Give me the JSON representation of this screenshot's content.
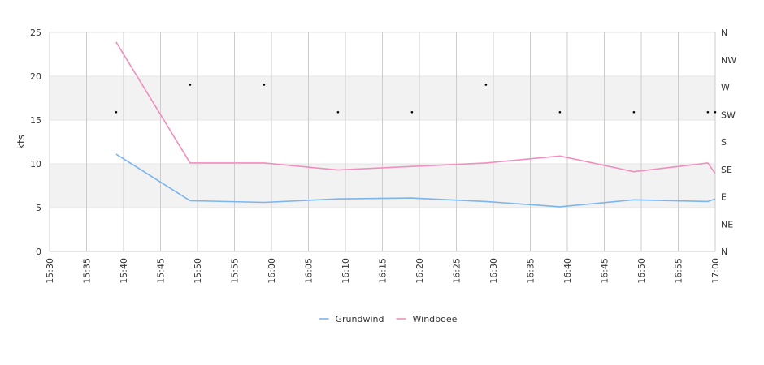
{
  "chart_data": {
    "type": "line",
    "ylabel": "kts",
    "xlim": [
      "15:30",
      "17:00"
    ],
    "x_ticks": [
      "15:30",
      "15:35",
      "15:40",
      "15:45",
      "15:50",
      "15:55",
      "16:00",
      "16:05",
      "16:10",
      "16:15",
      "16:20",
      "16:25",
      "16:30",
      "16:35",
      "16:40",
      "16:45",
      "16:50",
      "16:55",
      "17:00"
    ],
    "ylim": [
      0,
      25
    ],
    "y_ticks": [
      0,
      5,
      10,
      15,
      20,
      25
    ],
    "y2_ticks": [
      "N",
      "NE",
      "E",
      "SE",
      "S",
      "SW",
      "W",
      "NW",
      "N"
    ],
    "bands": [
      [
        5,
        10
      ],
      [
        15,
        20
      ]
    ],
    "grid": true,
    "legend_position": "bottom",
    "series": [
      {
        "name": "Grundwind",
        "color": "#7cb5ec",
        "points": [
          [
            "15:39",
            11.1
          ],
          [
            "15:49",
            5.8
          ],
          [
            "15:59",
            5.6
          ],
          [
            "16:09",
            6.0
          ],
          [
            "16:19",
            6.1
          ],
          [
            "16:29",
            5.7
          ],
          [
            "16:39",
            5.1
          ],
          [
            "16:49",
            5.9
          ],
          [
            "16:59",
            5.7
          ],
          [
            "17:00",
            6.0
          ]
        ]
      },
      {
        "name": "Windboee",
        "color": "#f08fbe",
        "points": [
          [
            "15:39",
            23.9
          ],
          [
            "15:49",
            10.1
          ],
          [
            "15:59",
            10.1
          ],
          [
            "16:09",
            9.3
          ],
          [
            "16:19",
            9.7
          ],
          [
            "16:29",
            10.1
          ],
          [
            "16:39",
            10.9
          ],
          [
            "16:49",
            9.1
          ],
          [
            "16:59",
            10.1
          ],
          [
            "17:00",
            8.9
          ]
        ]
      }
    ],
    "direction_markers": [
      [
        "15:39",
        "SW"
      ],
      [
        "15:49",
        "W"
      ],
      [
        "15:59",
        "W"
      ],
      [
        "16:09",
        "SW"
      ],
      [
        "16:19",
        "SW"
      ],
      [
        "16:29",
        "W"
      ],
      [
        "16:39",
        "SW"
      ],
      [
        "16:49",
        "SW"
      ],
      [
        "16:59",
        "SW"
      ],
      [
        "17:00",
        "SW"
      ]
    ]
  }
}
